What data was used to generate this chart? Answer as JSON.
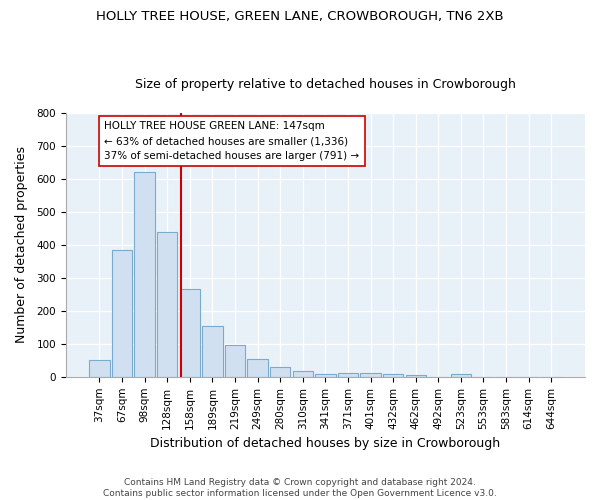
{
  "title": "HOLLY TREE HOUSE, GREEN LANE, CROWBOROUGH, TN6 2XB",
  "subtitle": "Size of property relative to detached houses in Crowborough",
  "xlabel": "Distribution of detached houses by size in Crowborough",
  "ylabel": "Number of detached properties",
  "bar_labels": [
    "37sqm",
    "67sqm",
    "98sqm",
    "128sqm",
    "158sqm",
    "189sqm",
    "219sqm",
    "249sqm",
    "280sqm",
    "310sqm",
    "341sqm",
    "371sqm",
    "401sqm",
    "432sqm",
    "462sqm",
    "492sqm",
    "523sqm",
    "553sqm",
    "583sqm",
    "614sqm",
    "644sqm"
  ],
  "bar_values": [
    50,
    385,
    620,
    440,
    265,
    153,
    98,
    55,
    30,
    18,
    10,
    11,
    12,
    8,
    5,
    0,
    8,
    0,
    0,
    0,
    0
  ],
  "bar_color": "#d0e0f0",
  "bar_edge_color": "#7aabcc",
  "red_line_color": "#cc0000",
  "annotation_text": "HOLLY TREE HOUSE GREEN LANE: 147sqm\n← 63% of detached houses are smaller (1,336)\n37% of semi-detached houses are larger (791) →",
  "annotation_box_color": "#ffffff",
  "annotation_box_edge": "#cc0000",
  "ylim": [
    0,
    800
  ],
  "yticks": [
    0,
    100,
    200,
    300,
    400,
    500,
    600,
    700,
    800
  ],
  "footer": "Contains HM Land Registry data © Crown copyright and database right 2024.\nContains public sector information licensed under the Open Government Licence v3.0.",
  "bg_color": "#e8eef8",
  "plot_bg_color": "#e8f0f8",
  "grid_color": "#ffffff",
  "title_fontsize": 9.5,
  "subtitle_fontsize": 9,
  "tick_label_fontsize": 7.5,
  "axis_label_fontsize": 9,
  "footer_fontsize": 6.5
}
